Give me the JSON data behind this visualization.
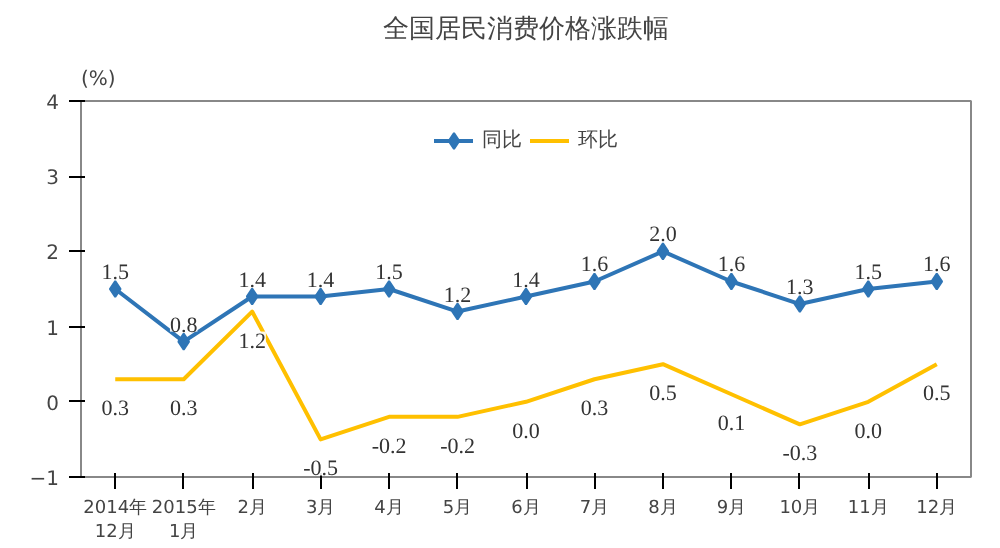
{
  "chart_data": {
    "type": "line",
    "title": "全国居民消费价格涨跌幅",
    "ylabel": "(%)",
    "categories": [
      "2014年\n12月",
      "2015年\n1月",
      "2月",
      "3月",
      "4月",
      "5月",
      "6月",
      "7月",
      "8月",
      "9月",
      "10月",
      "11月",
      "12月"
    ],
    "series": [
      {
        "name": "同比",
        "color": "#2e75b6",
        "marker": "diamond",
        "values": [
          1.5,
          0.8,
          1.4,
          1.4,
          1.5,
          1.2,
          1.4,
          1.6,
          2.0,
          1.6,
          1.3,
          1.5,
          1.6
        ],
        "value_labels": [
          "1.5",
          "0.8",
          "1.4",
          "1.4",
          "1.5",
          "1.2",
          "1.4",
          "1.6",
          "2.0",
          "1.6",
          "1.3",
          "1.5",
          "1.6"
        ]
      },
      {
        "name": "环比",
        "color": "#ffc000",
        "marker": "none",
        "values": [
          0.3,
          0.3,
          1.2,
          -0.5,
          -0.2,
          -0.2,
          0.0,
          0.3,
          0.5,
          0.1,
          -0.3,
          0.0,
          0.5
        ],
        "value_labels": [
          "0.3",
          "0.3",
          "1.2",
          "-0.5",
          "-0.2",
          "-0.2",
          "0.0",
          "0.3",
          "0.5",
          "0.1",
          "-0.3",
          "0.0",
          "0.5"
        ]
      }
    ],
    "ylim": [
      -1,
      4
    ],
    "yticks": [
      -1,
      0,
      1,
      2,
      3,
      4
    ],
    "grid": false,
    "legend": "top"
  }
}
